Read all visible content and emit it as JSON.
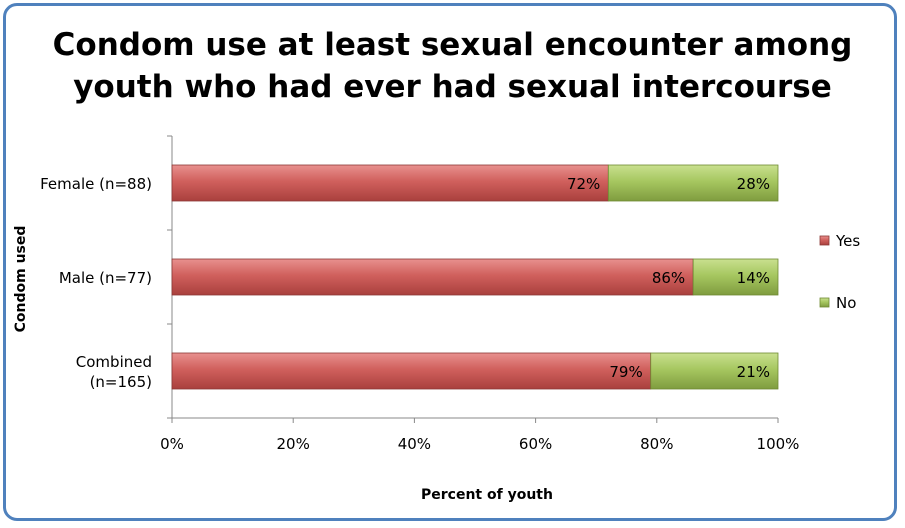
{
  "chart_data": {
    "type": "bar",
    "orientation": "horizontal",
    "stacked": true,
    "title": "Condom use at least sexual encounter among youth who had ever had sexual intercourse",
    "title_lines": [
      "Condom use at least sexual encounter among",
      "youth who had ever had sexual intercourse"
    ],
    "xlabel": "Percent of youth",
    "ylabel": "Condom used",
    "xlim": [
      0,
      100
    ],
    "x_ticks": [
      0,
      20,
      40,
      60,
      80,
      100
    ],
    "x_tick_labels": [
      "0%",
      "20%",
      "40%",
      "60%",
      "80%",
      "100%"
    ],
    "categories": [
      "Female (n=88)",
      "Male (n=77)",
      "Combined (n=165)"
    ],
    "category_label_lines": [
      [
        "Female (n=88)"
      ],
      [
        "Male (n=77)"
      ],
      [
        "Combined",
        "(n=165)"
      ]
    ],
    "series": [
      {
        "name": "Yes",
        "values": [
          72,
          86,
          79
        ],
        "labels": [
          "72%",
          "86%",
          "79%"
        ],
        "color": "#c0504d"
      },
      {
        "name": "No",
        "values": [
          28,
          14,
          21
        ],
        "labels": [
          "28%",
          "14%",
          "21%"
        ],
        "color": "#9bbb59"
      }
    ],
    "legend_position": "right",
    "grid": false
  }
}
